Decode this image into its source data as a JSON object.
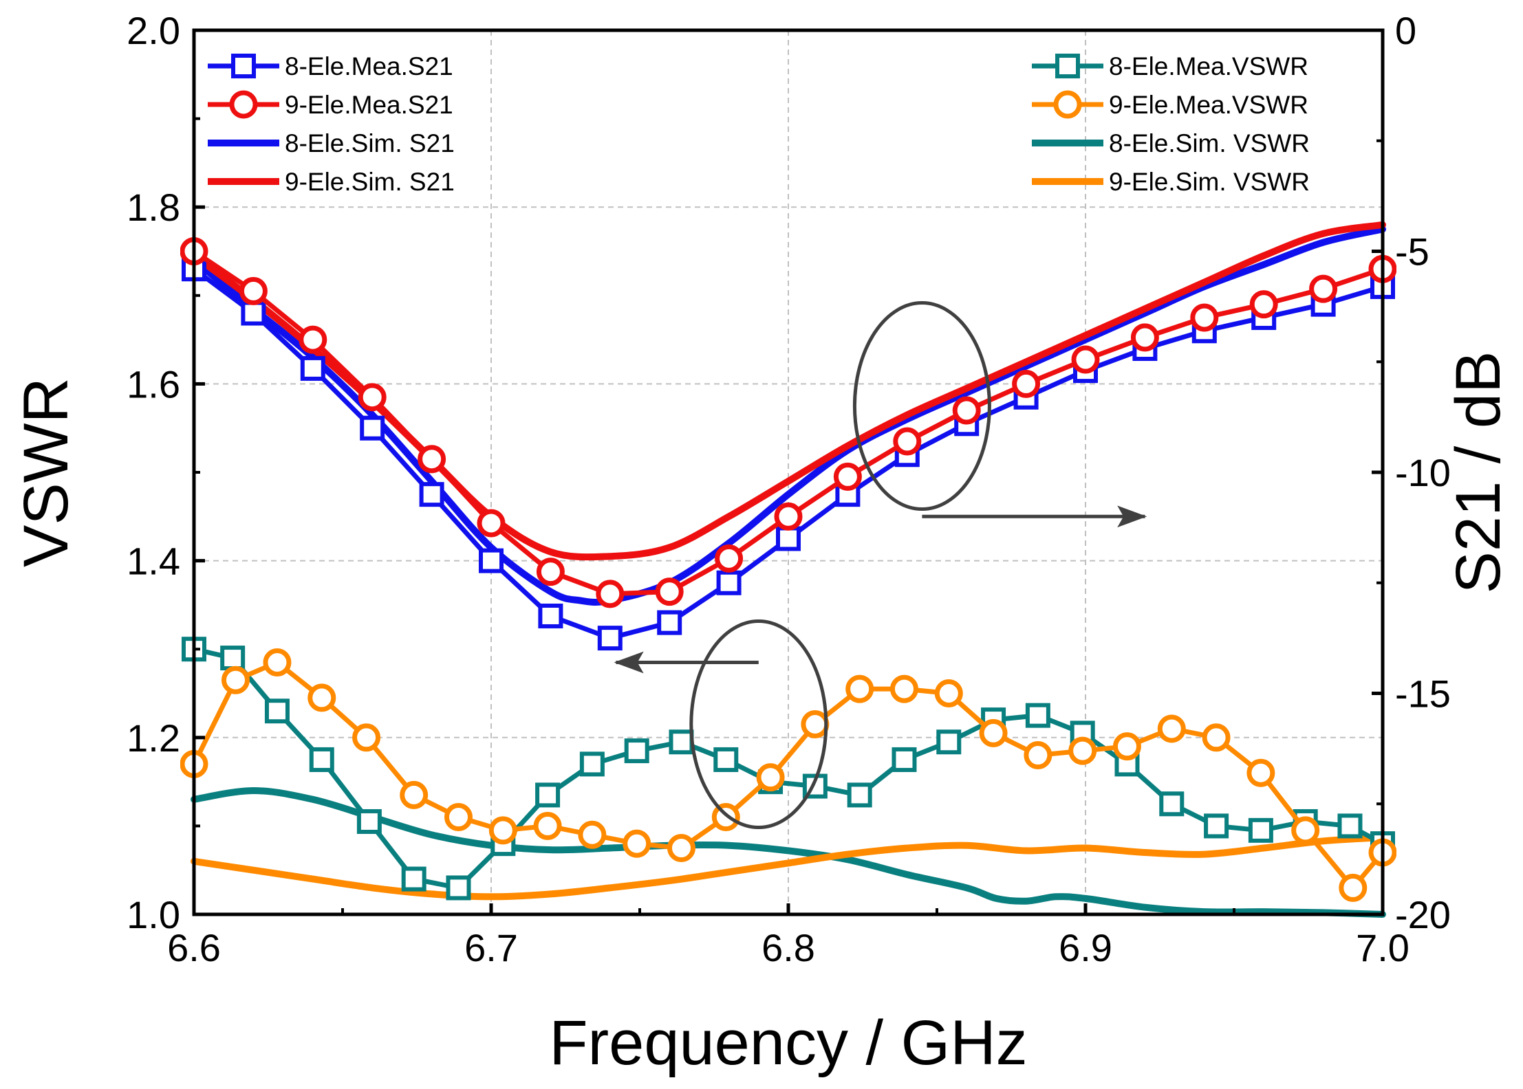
{
  "chart_data": {
    "type": "line",
    "title": "",
    "xlabel": "Frequency / GHz",
    "ylabel_left": "VSWR",
    "ylabel_right": "S21 / dB",
    "xlim": [
      6.6,
      7.0
    ],
    "ylim_left": [
      1.0,
      2.0
    ],
    "ylim_right": [
      -20,
      0
    ],
    "x_ticks": [
      "6.6",
      "6.7",
      "6.8",
      "6.9",
      "7.0"
    ],
    "x_tick_values": [
      6.6,
      6.7,
      6.8,
      6.9,
      7.0
    ],
    "y_left_ticks": [
      "1.0",
      "1.2",
      "1.4",
      "1.6",
      "1.8",
      "2.0"
    ],
    "y_left_tick_values": [
      1.0,
      1.2,
      1.4,
      1.6,
      1.8,
      2.0
    ],
    "y_right_ticks": [
      "0",
      "-5",
      "-10",
      "-15",
      "-20"
    ],
    "y_right_tick_values": [
      0,
      -5,
      -10,
      -15,
      -20
    ],
    "grid": true,
    "legend_left_position": "top-left",
    "legend_right_position": "top-right",
    "colors": {
      "blue": "#1010ee",
      "red": "#ee1010",
      "teal": "#0a7f7f",
      "orange": "#ff8a00",
      "annotation": "#404040",
      "grid": "#c0c0c0"
    },
    "annotations": [
      {
        "type": "ellipse-arrow",
        "group": "S21",
        "ellipse_center": [
          6.845,
          -8.5
        ],
        "arrow_to": [
          6.92,
          -11.0
        ],
        "direction": "right"
      },
      {
        "type": "ellipse-arrow",
        "group": "VSWR",
        "ellipse_center": [
          6.79,
          -15.7
        ],
        "arrow_to": [
          6.742,
          -14.3
        ],
        "direction": "left"
      }
    ],
    "series": [
      {
        "name": "8-Ele.Mea.S21",
        "axis": "right",
        "color": "blue",
        "marker": "square",
        "style": "solid",
        "x": [
          6.6,
          6.62,
          6.64,
          6.66,
          6.68,
          6.7,
          6.72,
          6.74,
          6.76,
          6.78,
          6.8,
          6.82,
          6.84,
          6.86,
          6.88,
          6.9,
          6.92,
          6.94,
          6.96,
          6.98,
          7.0
        ],
        "y": [
          -5.4,
          -6.4,
          -7.65,
          -9.0,
          -10.5,
          -12.0,
          -13.25,
          -13.75,
          -13.4,
          -12.5,
          -11.5,
          -10.5,
          -9.6,
          -8.9,
          -8.3,
          -7.7,
          -7.2,
          -6.8,
          -6.5,
          -6.2,
          -5.8
        ]
      },
      {
        "name": "9-Ele.Mea.S21",
        "axis": "right",
        "color": "red",
        "marker": "circle",
        "style": "solid",
        "x": [
          6.6,
          6.62,
          6.64,
          6.66,
          6.68,
          6.7,
          6.72,
          6.74,
          6.76,
          6.78,
          6.8,
          6.82,
          6.84,
          6.86,
          6.88,
          6.9,
          6.92,
          6.94,
          6.96,
          6.98,
          7.0
        ],
        "y": [
          -5.0,
          -5.9,
          -7.0,
          -8.3,
          -9.7,
          -11.15,
          -12.25,
          -12.75,
          -12.7,
          -11.95,
          -11.0,
          -10.1,
          -9.3,
          -8.6,
          -8.0,
          -7.45,
          -6.95,
          -6.5,
          -6.2,
          -5.85,
          -5.4
        ]
      },
      {
        "name": "8-Ele.Sim. S21",
        "axis": "right",
        "color": "blue",
        "marker": "none",
        "style": "solid",
        "x": [
          6.6,
          6.62,
          6.64,
          6.66,
          6.68,
          6.7,
          6.72,
          6.73,
          6.74,
          6.76,
          6.78,
          6.8,
          6.82,
          6.84,
          6.86,
          6.88,
          6.9,
          6.92,
          6.94,
          6.96,
          6.98,
          7.0
        ],
        "y": [
          -5.2,
          -6.3,
          -7.4,
          -8.7,
          -10.2,
          -11.7,
          -12.7,
          -12.9,
          -12.9,
          -12.5,
          -11.6,
          -10.5,
          -9.5,
          -8.8,
          -8.2,
          -7.6,
          -7.0,
          -6.4,
          -5.8,
          -5.3,
          -4.8,
          -4.5
        ]
      },
      {
        "name": "9-Ele.Sim. S21",
        "axis": "right",
        "color": "red",
        "marker": "none",
        "style": "solid",
        "x": [
          6.6,
          6.62,
          6.64,
          6.66,
          6.68,
          6.7,
          6.72,
          6.74,
          6.76,
          6.78,
          6.8,
          6.82,
          6.84,
          6.86,
          6.88,
          6.9,
          6.92,
          6.94,
          6.96,
          6.98,
          7.0
        ],
        "y": [
          -5.1,
          -6.1,
          -7.2,
          -8.4,
          -9.7,
          -11.0,
          -11.8,
          -11.9,
          -11.7,
          -11.0,
          -10.2,
          -9.4,
          -8.7,
          -8.1,
          -7.5,
          -6.9,
          -6.3,
          -5.7,
          -5.1,
          -4.6,
          -4.4
        ]
      },
      {
        "name": "8-Ele.Mea.VSWR",
        "axis": "left",
        "color": "teal",
        "marker": "square",
        "style": "solid",
        "x": [
          6.6,
          6.613,
          6.628,
          6.643,
          6.659,
          6.674,
          6.689,
          6.704,
          6.719,
          6.734,
          6.749,
          6.764,
          6.779,
          6.794,
          6.809,
          6.824,
          6.839,
          6.854,
          6.869,
          6.884,
          6.899,
          6.914,
          6.929,
          6.944,
          6.959,
          6.974,
          6.989,
          7.0
        ],
        "y": [
          1.3,
          1.29,
          1.23,
          1.175,
          1.105,
          1.04,
          1.03,
          1.08,
          1.135,
          1.17,
          1.185,
          1.195,
          1.175,
          1.15,
          1.145,
          1.135,
          1.175,
          1.195,
          1.22,
          1.225,
          1.205,
          1.17,
          1.125,
          1.1,
          1.095,
          1.105,
          1.1,
          1.08
        ]
      },
      {
        "name": "9-Ele.Mea.VSWR",
        "axis": "left",
        "color": "orange",
        "marker": "circle",
        "style": "solid",
        "x": [
          6.6,
          6.614,
          6.628,
          6.643,
          6.658,
          6.674,
          6.689,
          6.704,
          6.719,
          6.734,
          6.749,
          6.764,
          6.779,
          6.794,
          6.809,
          6.824,
          6.839,
          6.854,
          6.869,
          6.884,
          6.899,
          6.914,
          6.929,
          6.944,
          6.959,
          6.974,
          6.99,
          7.0
        ],
        "y": [
          1.17,
          1.265,
          1.285,
          1.245,
          1.2,
          1.135,
          1.11,
          1.095,
          1.1,
          1.09,
          1.08,
          1.075,
          1.11,
          1.155,
          1.215,
          1.255,
          1.255,
          1.25,
          1.205,
          1.18,
          1.185,
          1.19,
          1.21,
          1.2,
          1.16,
          1.095,
          1.03,
          1.07
        ]
      },
      {
        "name": "8-Ele.Sim. VSWR",
        "axis": "left",
        "color": "teal",
        "marker": "none",
        "style": "solid",
        "x": [
          6.6,
          6.62,
          6.64,
          6.66,
          6.68,
          6.7,
          6.72,
          6.74,
          6.76,
          6.78,
          6.8,
          6.82,
          6.84,
          6.86,
          6.87,
          6.88,
          6.89,
          6.9,
          6.92,
          6.94,
          6.96,
          6.98,
          7.0
        ],
        "y": [
          1.13,
          1.14,
          1.13,
          1.11,
          1.09,
          1.078,
          1.073,
          1.075,
          1.078,
          1.078,
          1.072,
          1.062,
          1.045,
          1.03,
          1.018,
          1.015,
          1.02,
          1.018,
          1.008,
          1.003,
          1.003,
          1.002,
          1.0
        ]
      },
      {
        "name": "9-Ele.Sim. VSWR",
        "axis": "left",
        "color": "orange",
        "marker": "none",
        "style": "solid",
        "x": [
          6.6,
          6.62,
          6.64,
          6.66,
          6.68,
          6.7,
          6.72,
          6.74,
          6.76,
          6.78,
          6.8,
          6.82,
          6.84,
          6.86,
          6.88,
          6.9,
          6.92,
          6.94,
          6.96,
          6.98,
          7.0
        ],
        "y": [
          1.06,
          1.05,
          1.04,
          1.03,
          1.023,
          1.02,
          1.023,
          1.03,
          1.038,
          1.048,
          1.058,
          1.068,
          1.075,
          1.078,
          1.072,
          1.075,
          1.07,
          1.068,
          1.075,
          1.083,
          1.087
        ]
      }
    ]
  }
}
